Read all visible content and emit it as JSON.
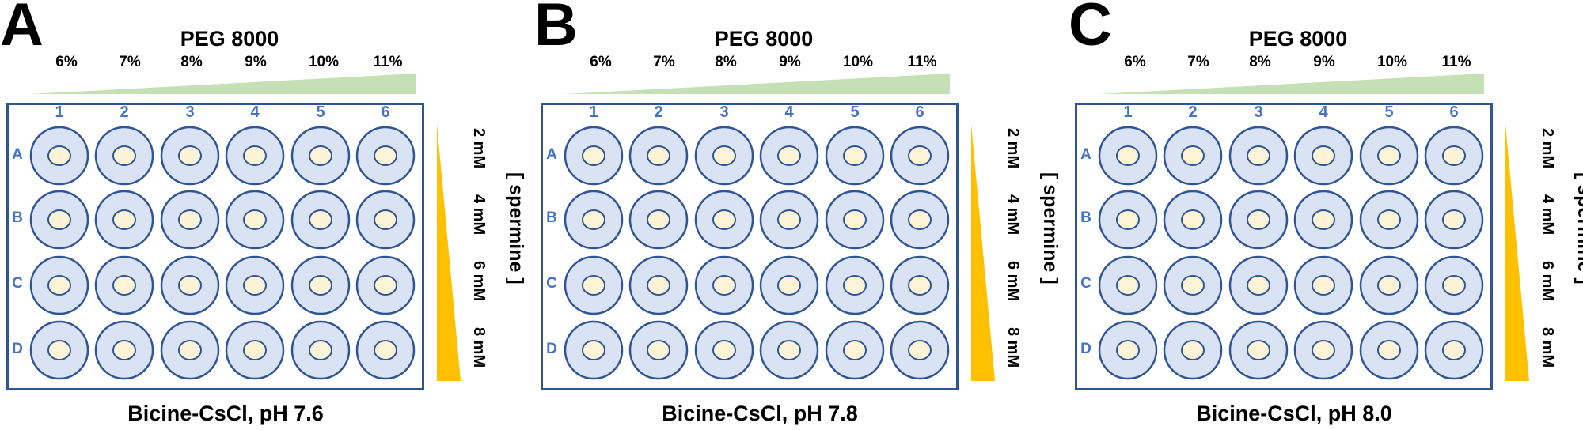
{
  "peg_label": "PEG 8000",
  "peg_percents": [
    "6%",
    "7%",
    "8%",
    "9%",
    "10%",
    "11%"
  ],
  "columns": [
    "1",
    "2",
    "3",
    "4",
    "5",
    "6"
  ],
  "rows": [
    "A",
    "B",
    "C",
    "D"
  ],
  "spermine_label": "[ spermine ]",
  "spermine_concentrations": [
    "2 mM",
    "4 mM",
    "6 mM",
    "8 mM"
  ],
  "colors": {
    "plate_border": "#2f5597",
    "well_fill": "#dae3f3",
    "well_stroke": "#2f5597",
    "drop_fill": "#fdf3d6",
    "label_blue": "#4472c4",
    "peg_wedge": "#c5e0b4",
    "spermine_wedge": "#ffc000"
  },
  "panels": [
    {
      "letter": "A",
      "condition": "Bicine-CsCl, pH 7.6"
    },
    {
      "letter": "B",
      "condition": "Bicine-CsCl, pH 7.8"
    },
    {
      "letter": "C",
      "condition": "Bicine-CsCl, pH 8.0"
    }
  ]
}
